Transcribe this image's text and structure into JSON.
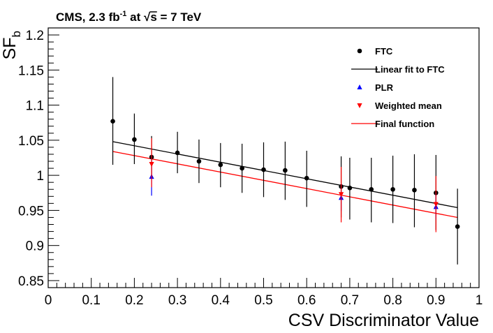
{
  "chart_data": {
    "type": "scatter",
    "title": {
      "prefix": "CMS, 2.3 fb",
      "superscript": "-1",
      "middle": " at ",
      "sqrt_symbol": "√",
      "sqrt_arg": "s",
      "suffix": " = 7 TeV"
    },
    "xlabel": "CSV Discriminator Value",
    "ylabel": {
      "base": "SF",
      "subscript": "b"
    },
    "xlim": [
      0,
      1
    ],
    "ylim": [
      0.84,
      1.21
    ],
    "x_ticks": [
      0,
      0.1,
      0.2,
      0.3,
      0.4,
      0.5,
      0.6,
      0.7,
      0.8,
      0.9,
      1
    ],
    "x_tick_labels": [
      "0",
      "0.1",
      "0.2",
      "0.3",
      "0.4",
      "0.5",
      "0.6",
      "0.7",
      "0.8",
      "0.9",
      "1"
    ],
    "y_ticks": [
      0.85,
      0.9,
      0.95,
      1,
      1.05,
      1.1,
      1.15,
      1.2
    ],
    "y_tick_labels": [
      "0.85",
      "0.9",
      "0.95",
      "1",
      "1.05",
      "1.1",
      "1.15",
      "1.2"
    ],
    "legend_position": "top-right",
    "series": [
      {
        "name": "FTC",
        "kind": "points",
        "marker": "circle",
        "color": "#000000",
        "points": [
          {
            "x": 0.15,
            "y": 1.077,
            "low": 1.015,
            "high": 1.14
          },
          {
            "x": 0.2,
            "y": 1.051,
            "low": 1.016,
            "high": 1.088
          },
          {
            "x": 0.24,
            "y": 1.026,
            "low": 0.997,
            "high": 1.056
          },
          {
            "x": 0.3,
            "y": 1.032,
            "low": 1.003,
            "high": 1.062
          },
          {
            "x": 0.35,
            "y": 1.02,
            "low": 0.989,
            "high": 1.051
          },
          {
            "x": 0.4,
            "y": 1.015,
            "low": 0.983,
            "high": 1.046
          },
          {
            "x": 0.45,
            "y": 1.01,
            "low": 0.975,
            "high": 1.045
          },
          {
            "x": 0.5,
            "y": 1.008,
            "low": 0.969,
            "high": 1.047
          },
          {
            "x": 0.55,
            "y": 1.007,
            "low": 0.965,
            "high": 1.048
          },
          {
            "x": 0.6,
            "y": 0.996,
            "low": 0.955,
            "high": 1.035
          },
          {
            "x": 0.68,
            "y": 0.984,
            "low": 0.94,
            "high": 1.027
          },
          {
            "x": 0.7,
            "y": 0.982,
            "low": 0.937,
            "high": 1.025
          },
          {
            "x": 0.75,
            "y": 0.98,
            "low": 0.933,
            "high": 1.025
          },
          {
            "x": 0.8,
            "y": 0.98,
            "low": 0.932,
            "high": 1.028
          },
          {
            "x": 0.85,
            "y": 0.979,
            "low": 0.926,
            "high": 1.03
          },
          {
            "x": 0.9,
            "y": 0.975,
            "low": 0.922,
            "high": 1.029
          },
          {
            "x": 0.95,
            "y": 0.927,
            "low": 0.873,
            "high": 0.981
          }
        ]
      },
      {
        "name": "Linear fit to FTC",
        "kind": "line",
        "color": "#000000",
        "x": [
          0.15,
          0.95
        ],
        "y": [
          1.048,
          0.954
        ]
      },
      {
        "name": "PLR",
        "kind": "points",
        "marker": "triangle-up",
        "color": "#0000ff",
        "points": [
          {
            "x": 0.24,
            "y": 0.998,
            "low": 0.971,
            "high": 1.029
          },
          {
            "x": 0.68,
            "y": 0.968,
            "low": 0.949,
            "high": 0.988
          },
          {
            "x": 0.9,
            "y": 0.955,
            "low": 0.937,
            "high": 0.975
          }
        ]
      },
      {
        "name": "Weighted mean",
        "kind": "points",
        "marker": "triangle-down",
        "color": "#ff0000",
        "points": [
          {
            "x": 0.24,
            "y": 1.016,
            "low": 0.983,
            "high": 1.053
          },
          {
            "x": 0.68,
            "y": 0.973,
            "low": 0.933,
            "high": 1.012
          },
          {
            "x": 0.9,
            "y": 0.959,
            "low": 0.919,
            "high": 0.999
          }
        ]
      },
      {
        "name": "Final function",
        "kind": "line",
        "color": "#ff0000",
        "x": [
          0.15,
          0.95
        ],
        "y": [
          1.034,
          0.94
        ]
      }
    ]
  }
}
